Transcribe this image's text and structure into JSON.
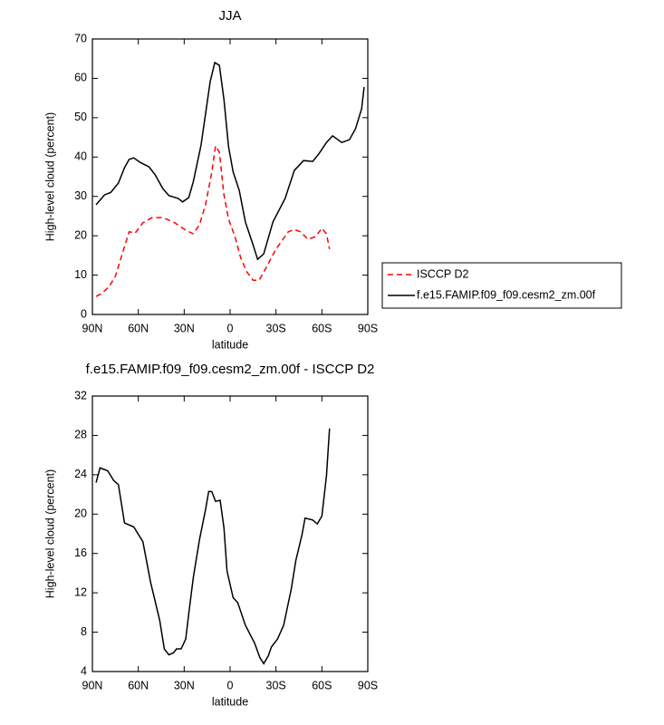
{
  "chart_data": [
    {
      "type": "line",
      "title": "JJA",
      "xlabel": "latitude",
      "ylabel": "High-level cloud (percent)",
      "xlim": [
        90,
        -90
      ],
      "ylim": [
        0,
        70
      ],
      "xticks": [
        {
          "value": 90,
          "label": "90N"
        },
        {
          "value": 60,
          "label": "60N"
        },
        {
          "value": 30,
          "label": "30N"
        },
        0,
        {
          "value": -30,
          "label": "30S"
        },
        {
          "value": -60,
          "label": "60S"
        },
        {
          "value": -90,
          "label": "90S"
        }
      ],
      "yticks": [
        0,
        10,
        20,
        30,
        40,
        50,
        60,
        70
      ],
      "series": [
        {
          "name": "ISCCP D2",
          "color": "#ff0000",
          "dash": true,
          "x": [
            87.6,
            84,
            79,
            75,
            70,
            66,
            62,
            57,
            51,
            44,
            37,
            29,
            24,
            20,
            16,
            12,
            9.5,
            7,
            4,
            1,
            -3,
            -7,
            -11,
            -15,
            -19,
            -24,
            -30,
            -38,
            -42,
            -46,
            -51,
            -56,
            -60,
            -63,
            -65
          ],
          "values": [
            4.6,
            5.3,
            7.1,
            9.7,
            16,
            21,
            20.7,
            23.3,
            24.6,
            24.6,
            23.5,
            21.4,
            20.5,
            22.8,
            28,
            36,
            42.8,
            41.2,
            30.4,
            24.2,
            20,
            14.3,
            10.8,
            8.7,
            8.7,
            12.2,
            16.6,
            21,
            21.6,
            21,
            19.1,
            19.8,
            21.9,
            20.5,
            16.6
          ]
        },
        {
          "name": "f.e15.FAMIP.f09_f09.cesm2_zm.00f",
          "color": "#000000",
          "dash": false,
          "x": [
            87.6,
            82,
            78,
            73,
            69,
            66,
            63,
            59,
            53,
            49,
            44,
            40,
            34,
            31,
            27,
            24,
            19,
            13,
            10,
            7,
            4,
            1,
            -2,
            -6,
            -10,
            -15,
            -18,
            -22,
            -28,
            -36,
            -42,
            -48,
            -54,
            -58,
            -63,
            -67,
            -73,
            -78,
            -82,
            -86,
            -87.6
          ],
          "values": [
            27.9,
            30.4,
            31,
            33.4,
            37.3,
            39.4,
            39.8,
            38.7,
            37.5,
            35.5,
            32,
            30.2,
            29.5,
            28.6,
            29.7,
            33.8,
            43,
            59.2,
            64,
            63.3,
            54.6,
            42.6,
            36.2,
            31.5,
            23.5,
            17.7,
            14,
            15.4,
            23.5,
            29.5,
            36.6,
            39.1,
            38.9,
            40.8,
            43.7,
            45.4,
            43.7,
            44.4,
            47.2,
            52.3,
            57.8
          ]
        }
      ]
    },
    {
      "type": "line",
      "title": "f.e15.FAMIP.f09_f09.cesm2_zm.00f - ISCCP D2",
      "xlabel": "latitude",
      "ylabel": "High-level cloud (percent)",
      "xlim": [
        90,
        -90
      ],
      "ylim": [
        4,
        32
      ],
      "xticks": [
        {
          "value": 90,
          "label": "90N"
        },
        {
          "value": 60,
          "label": "60N"
        },
        {
          "value": 30,
          "label": "30N"
        },
        0,
        {
          "value": -30,
          "label": "30S"
        },
        {
          "value": -60,
          "label": "60S"
        },
        {
          "value": -90,
          "label": "90S"
        }
      ],
      "yticks": [
        4,
        8,
        12,
        16,
        20,
        24,
        28,
        32
      ],
      "color": "#000000",
      "x": [
        87.6,
        85,
        80,
        76,
        73,
        69,
        63,
        57,
        52,
        46,
        43,
        40,
        37,
        35,
        32,
        29,
        27,
        24,
        20,
        16,
        14,
        12,
        9.5,
        6.5,
        4,
        2,
        -2,
        -5,
        -10,
        -16,
        -19.5,
        -22,
        -25,
        -27,
        -31,
        -35,
        -40,
        -43,
        -47,
        -49,
        -54,
        -57,
        -60,
        -63,
        -65
      ],
      "values": [
        23.2,
        24.7,
        24.4,
        23.4,
        23,
        19.1,
        18.7,
        17.2,
        13.1,
        9.2,
        6.3,
        5.7,
        5.9,
        6.3,
        6.3,
        7.3,
        9.9,
        13.6,
        17.4,
        20.5,
        22.3,
        22.3,
        21.3,
        21.4,
        18.6,
        14.2,
        11.5,
        11,
        8.7,
        6.9,
        5.4,
        4.8,
        5.6,
        6.5,
        7.3,
        8.7,
        12.4,
        15.3,
        17.9,
        19.6,
        19.4,
        19,
        19.8,
        23.9,
        28.7
      ]
    }
  ]
}
